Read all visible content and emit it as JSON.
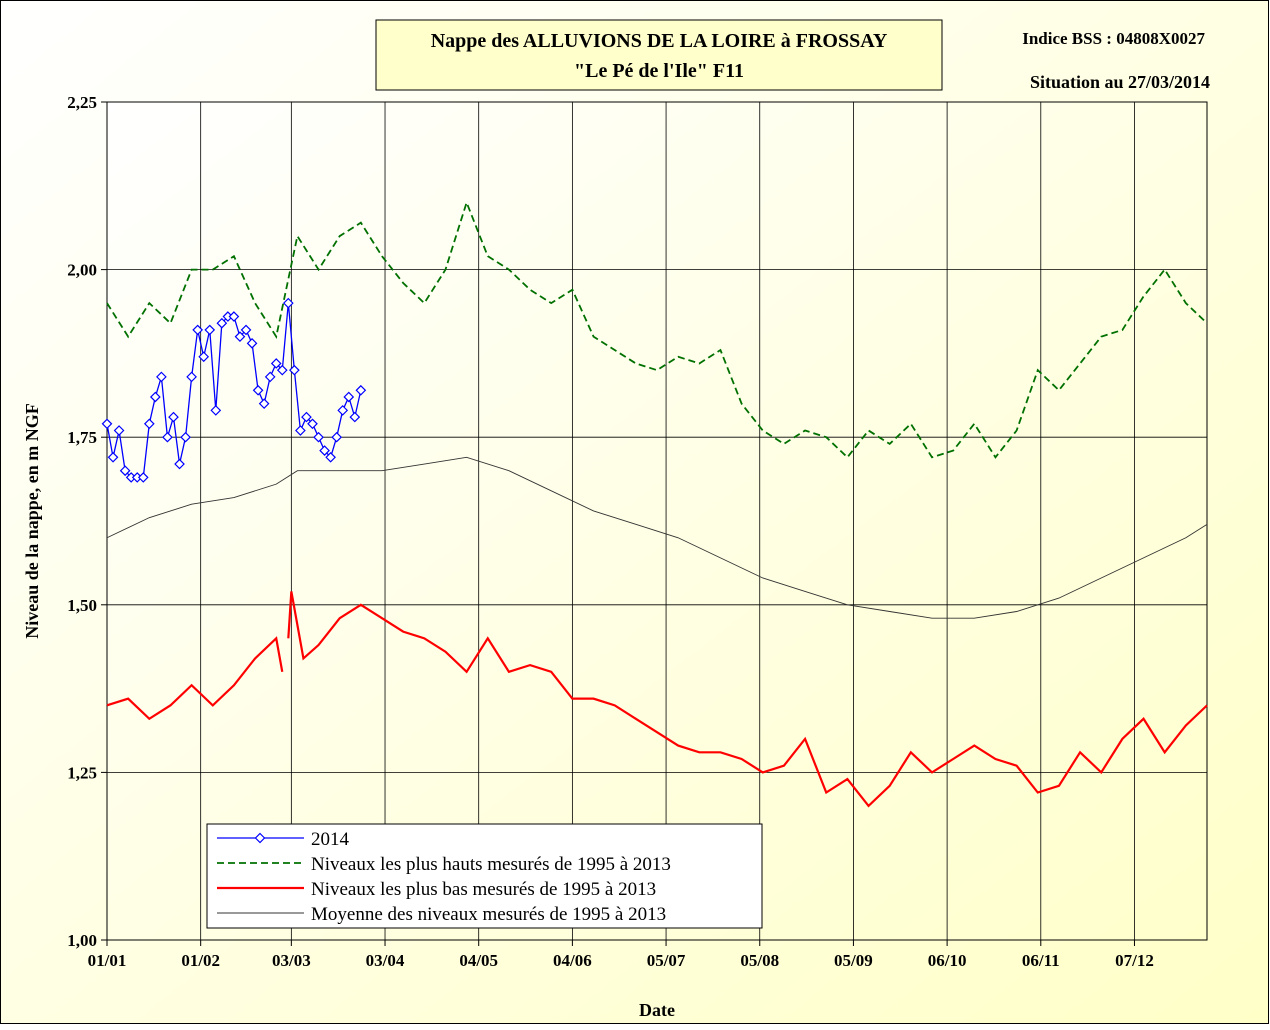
{
  "chart_data": {
    "type": "line",
    "title": "Nappe des ALLUVIONS DE LA LOIRE à FROSSAY",
    "subtitle": "\"Le Pé de l'Ile\" F11",
    "annotations": [
      "Indice BSS : 04808X0027",
      "Situation au 27/03/2014"
    ],
    "x_label": "Date",
    "y_label": "Niveau de la nappe, en m NGF",
    "xlim": [
      0,
      364
    ],
    "xticks": [
      {
        "value": 0,
        "label": "01/01"
      },
      {
        "value": 31,
        "label": "01/02"
      },
      {
        "value": 61,
        "label": "03/03"
      },
      {
        "value": 92,
        "label": "03/04"
      },
      {
        "value": 123,
        "label": "04/05"
      },
      {
        "value": 154,
        "label": "04/06"
      },
      {
        "value": 185,
        "label": "05/07"
      },
      {
        "value": 216,
        "label": "05/08"
      },
      {
        "value": 247,
        "label": "05/09"
      },
      {
        "value": 278,
        "label": "06/10"
      },
      {
        "value": 309,
        "label": "06/11"
      },
      {
        "value": 340,
        "label": "07/12"
      }
    ],
    "ylim": [
      1,
      2.25
    ],
    "yticks": [
      {
        "value": 1,
        "label": "1,00"
      },
      {
        "value": 1.25,
        "label": "1,25"
      },
      {
        "value": 1.5,
        "label": "1,50"
      },
      {
        "value": 1.75,
        "label": "1,75"
      },
      {
        "value": 2,
        "label": "2,00"
      },
      {
        "value": 2.25,
        "label": "2,25"
      }
    ],
    "grid": true,
    "legend": "bottom-left",
    "series": [
      {
        "name": "2014",
        "color": "#0000ff",
        "style": "solid",
        "markers": true,
        "x": [
          0,
          2,
          4,
          6,
          8,
          10,
          12,
          14,
          16,
          18,
          20,
          22,
          24,
          26,
          28,
          30,
          32,
          34,
          36,
          38,
          40,
          42,
          44,
          46,
          48,
          50,
          52,
          54,
          56,
          58,
          60,
          62,
          64,
          66,
          68,
          70,
          72,
          74,
          76,
          78,
          80,
          82,
          84
        ],
        "values": [
          1.77,
          1.72,
          1.76,
          1.7,
          1.69,
          1.69,
          1.69,
          1.77,
          1.81,
          1.84,
          1.75,
          1.78,
          1.71,
          1.75,
          1.84,
          1.91,
          1.87,
          1.91,
          1.79,
          1.92,
          1.93,
          1.93,
          1.9,
          1.91,
          1.89,
          1.82,
          1.8,
          1.84,
          1.86,
          1.85,
          1.95,
          1.85,
          1.76,
          1.78,
          1.77,
          1.75,
          1.73,
          1.72,
          1.75,
          1.79,
          1.81,
          1.78,
          1.82
        ]
      },
      {
        "name": "Niveaux les plus hauts mesurés de 1995 à 2013",
        "color": "#007000",
        "style": "dashed",
        "x": [
          0,
          7,
          14,
          21,
          28,
          35,
          42,
          49,
          56,
          63,
          70,
          77,
          84,
          91,
          98,
          105,
          112,
          119,
          126,
          133,
          140,
          147,
          154,
          161,
          168,
          175,
          182,
          189,
          196,
          203,
          210,
          217,
          224,
          231,
          238,
          245,
          252,
          259,
          266,
          273,
          280,
          287,
          294,
          301,
          308,
          315,
          322,
          329,
          336,
          343,
          350,
          357,
          364
        ],
        "values": [
          1.95,
          1.9,
          1.95,
          1.92,
          2.0,
          2.0,
          2.02,
          1.95,
          1.9,
          2.05,
          2.0,
          2.05,
          2.07,
          2.02,
          1.98,
          1.95,
          2.0,
          2.1,
          2.02,
          2.0,
          1.97,
          1.95,
          1.97,
          1.9,
          1.88,
          1.86,
          1.85,
          1.87,
          1.86,
          1.88,
          1.8,
          1.76,
          1.74,
          1.76,
          1.75,
          1.72,
          1.76,
          1.74,
          1.77,
          1.72,
          1.73,
          1.77,
          1.72,
          1.76,
          1.85,
          1.82,
          1.86,
          1.9,
          1.91,
          1.96,
          2.0,
          1.95,
          1.92
        ]
      },
      {
        "name": "Niveaux les plus bas mesurés de 1995 à 2013",
        "color": "#ff0000",
        "style": "solid",
        "x": [
          0,
          7,
          14,
          21,
          28,
          35,
          42,
          49,
          56,
          58,
          59,
          60,
          61,
          65,
          70,
          77,
          84,
          91,
          98,
          105,
          112,
          119,
          126,
          133,
          140,
          147,
          154,
          161,
          168,
          175,
          182,
          189,
          196,
          203,
          210,
          217,
          224,
          231,
          238,
          245,
          252,
          259,
          266,
          273,
          280,
          287,
          294,
          301,
          308,
          315,
          322,
          329,
          336,
          343,
          350,
          357,
          364
        ],
        "values": [
          1.35,
          1.36,
          1.33,
          1.35,
          1.38,
          1.35,
          1.38,
          1.42,
          1.45,
          1.4,
          null,
          1.45,
          1.52,
          1.42,
          1.44,
          1.48,
          1.5,
          1.48,
          1.46,
          1.45,
          1.43,
          1.4,
          1.45,
          1.4,
          1.41,
          1.4,
          1.36,
          1.36,
          1.35,
          1.33,
          1.31,
          1.29,
          1.28,
          1.28,
          1.27,
          1.25,
          1.26,
          1.3,
          1.22,
          1.24,
          1.2,
          1.23,
          1.28,
          1.25,
          1.27,
          1.29,
          1.27,
          1.26,
          1.22,
          1.23,
          1.28,
          1.25,
          1.3,
          1.33,
          1.28,
          1.32,
          1.35
        ]
      },
      {
        "name": "Moyenne des niveaux mesurés de 1995 à 2013",
        "color": "#333333",
        "style": "thin",
        "x": [
          0,
          14,
          28,
          42,
          56,
          63,
          77,
          91,
          105,
          119,
          133,
          147,
          161,
          175,
          189,
          203,
          217,
          231,
          245,
          259,
          273,
          287,
          301,
          315,
          329,
          343,
          357,
          364
        ],
        "values": [
          1.6,
          1.63,
          1.65,
          1.66,
          1.68,
          1.7,
          1.7,
          1.7,
          1.71,
          1.72,
          1.7,
          1.67,
          1.64,
          1.62,
          1.6,
          1.57,
          1.54,
          1.52,
          1.5,
          1.49,
          1.48,
          1.48,
          1.49,
          1.51,
          1.54,
          1.57,
          1.6,
          1.62
        ]
      }
    ]
  }
}
